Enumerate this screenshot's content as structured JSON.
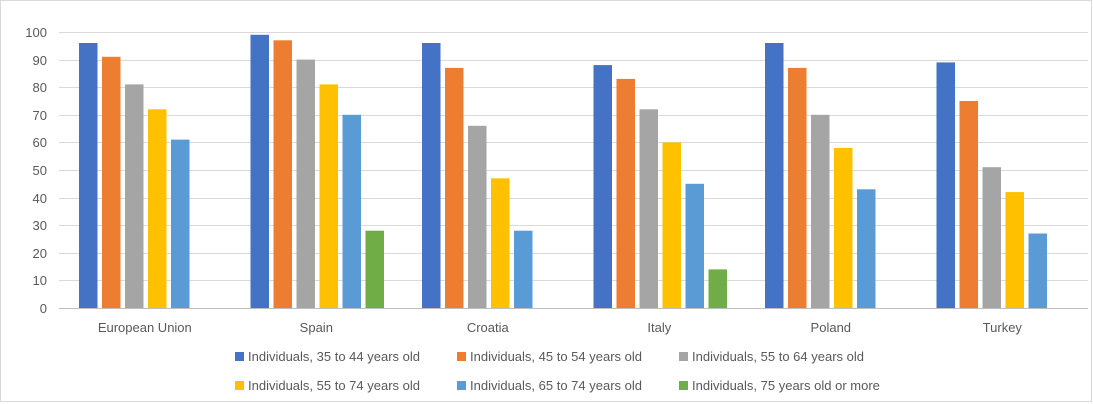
{
  "chart_data": {
    "type": "bar",
    "title": "",
    "xlabel": "",
    "ylabel": "",
    "ylim": [
      0,
      100
    ],
    "ytick_step": 10,
    "grid": "horizontal",
    "legend_placement": "bottom",
    "categories": [
      "European Union",
      "Spain",
      "Croatia",
      "Italy",
      "Poland",
      "Turkey"
    ],
    "series": [
      {
        "name": "Individuals, 35 to 44 years old",
        "color": "#4472C4",
        "values": [
          96,
          99,
          96,
          88,
          96,
          89
        ]
      },
      {
        "name": "Individuals, 45 to 54 years old",
        "color": "#ED7D31",
        "values": [
          91,
          97,
          87,
          83,
          87,
          75
        ]
      },
      {
        "name": "Individuals, 55 to 64 years old",
        "color": "#A5A5A5",
        "values": [
          81,
          90,
          66,
          72,
          70,
          51
        ]
      },
      {
        "name": "Individuals, 55 to 74 years old",
        "color": "#FFC000",
        "values": [
          72,
          81,
          47,
          60,
          58,
          42
        ]
      },
      {
        "name": "Individuals, 65 to 74 years old",
        "color": "#5B9BD5",
        "values": [
          61,
          70,
          28,
          45,
          43,
          27
        ]
      },
      {
        "name": "Individuals, 75 years old or more",
        "color": "#70AD47",
        "values": [
          null,
          28,
          null,
          14,
          null,
          null
        ]
      }
    ]
  }
}
